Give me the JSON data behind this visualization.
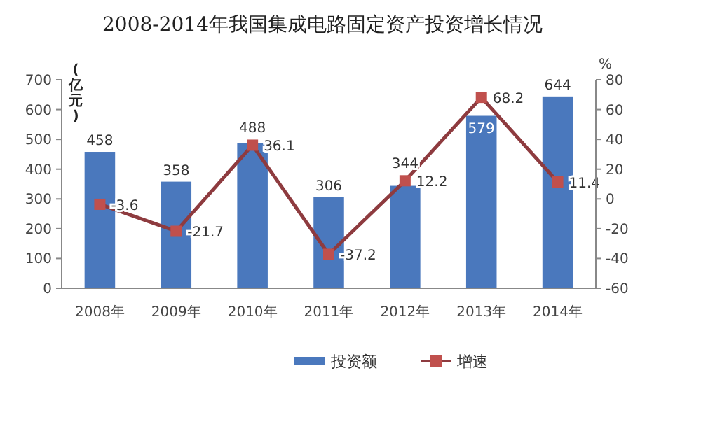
{
  "chart_data": {
    "type": "bar",
    "title": "2008-2014年我国集成电路固定资产投资增长情况",
    "ylabel": "(亿元)",
    "y2label": "%",
    "categories": [
      "2008年",
      "2009年",
      "2010年",
      "2011年",
      "2012年",
      "2013年",
      "2014年"
    ],
    "series": [
      {
        "name": "投资额",
        "color": "#4a78bd",
        "values": [
          458,
          358,
          488,
          306,
          344,
          579,
          644
        ]
      },
      {
        "name": "增速",
        "type": "line",
        "axis": "y2",
        "color": "#8e3b3f",
        "marker": "square",
        "values": [
          -3.6,
          -21.7,
          36.1,
          -37.2,
          12.2,
          68.2,
          11.4
        ]
      }
    ],
    "ylim": [
      0,
      700
    ],
    "yticks": [
      0,
      100,
      200,
      300,
      400,
      500,
      600,
      700
    ],
    "y2lim": [
      -60,
      80
    ],
    "y2ticks": [
      -60,
      -40,
      -20,
      0,
      20,
      40,
      60,
      80
    ],
    "data_labels": true,
    "legend": "bottom",
    "grid": false
  }
}
